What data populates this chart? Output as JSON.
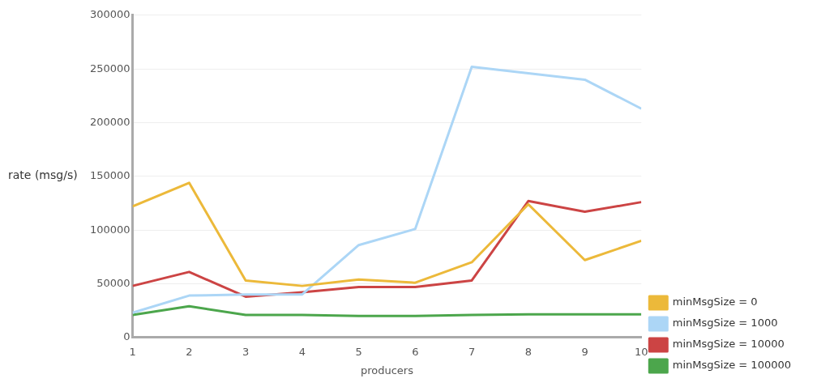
{
  "chart_data": {
    "type": "line",
    "xlabel": "producers",
    "ylabel": "rate (msg/s)",
    "x": [
      1,
      2,
      3,
      4,
      5,
      6,
      7,
      8,
      9,
      10
    ],
    "xlim": [
      1,
      10
    ],
    "xticks": [
      1,
      2,
      3,
      4,
      5,
      6,
      7,
      8,
      9,
      10
    ],
    "ylim": [
      0,
      300000
    ],
    "yticks": [
      0,
      50000,
      100000,
      150000,
      200000,
      250000,
      300000
    ],
    "grid": "y",
    "legend": "right",
    "marker": "none",
    "series": [
      {
        "name": "minMsgSize = 0",
        "color": "#ecb93a",
        "values": [
          122000,
          144000,
          53000,
          48000,
          54000,
          51000,
          70000,
          124000,
          72000,
          90000
        ]
      },
      {
        "name": "minMsgSize = 1000",
        "color": "#acd6f6",
        "values": [
          23000,
          39000,
          40000,
          40000,
          86000,
          101000,
          252000,
          246000,
          240000,
          213000
        ]
      },
      {
        "name": "minMsgSize = 10000",
        "color": "#cc4444",
        "values": [
          48000,
          61000,
          38000,
          42000,
          47000,
          47000,
          53000,
          127000,
          117000,
          126000
        ]
      },
      {
        "name": "minMsgSize = 100000",
        "color": "#4ca64c",
        "values": [
          21000,
          29000,
          21000,
          21000,
          20000,
          20000,
          21000,
          21500,
          21500,
          21500
        ]
      }
    ]
  }
}
